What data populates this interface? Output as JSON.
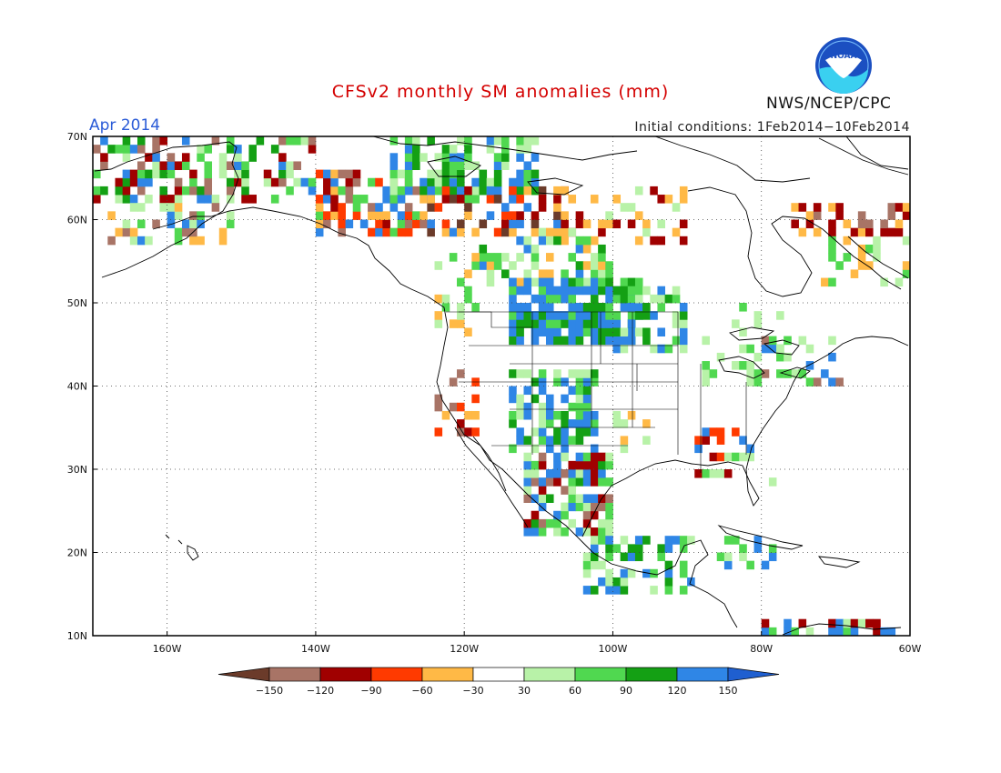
{
  "header": {
    "title": "CFSv2 monthly SM anomalies (mm)",
    "month": "Apr 2014",
    "initial_conditions": "Initial conditions: 1Feb2014−10Feb2014",
    "agency": "NWS/NCEP/CPC",
    "logo_text": "NOAA"
  },
  "map": {
    "lat_labels": [
      "70N",
      "60N",
      "50N",
      "40N",
      "30N",
      "20N",
      "10N"
    ],
    "lon_labels": [
      "160W",
      "140W",
      "120W",
      "100W",
      "80W",
      "60W"
    ],
    "lat_range": [
      10,
      70
    ],
    "lon_range": [
      -170,
      -60
    ],
    "gridlines": "dotted"
  },
  "legend": {
    "ticks": [
      "−150",
      "−120",
      "−90",
      "−60",
      "−30",
      "30",
      "60",
      "90",
      "120",
      "150"
    ],
    "colors": [
      "#6b3b2a",
      "#a87466",
      "#a00000",
      "#ff3a00",
      "#ffb946",
      "#ffffff",
      "#b8f2a8",
      "#50d850",
      "#14a014",
      "#2f86e6",
      "#1f5fd0"
    ]
  },
  "colors": {
    "title": "#d40000",
    "month": "#2a5bd7",
    "land_outline": "#000000"
  }
}
